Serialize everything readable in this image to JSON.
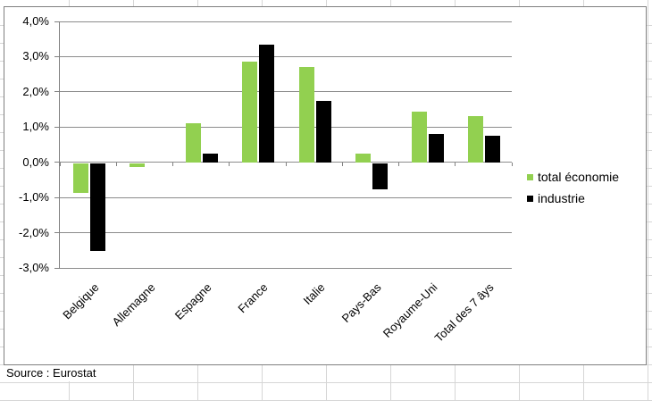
{
  "sheet": {
    "source_note": "Source : Eurostat"
  },
  "chart_data": {
    "type": "bar",
    "title": "",
    "xlabel": "",
    "ylabel": "",
    "categories": [
      "Belgique",
      "Allemagne",
      "Espagne",
      "France",
      "Italie",
      "Pays-Bas",
      "Royaume-Uni",
      "Total des 7 âys"
    ],
    "series": [
      {
        "name": "total économie",
        "color": "#92D050",
        "values": [
          -0.85,
          -0.1,
          1.1,
          2.85,
          2.7,
          0.25,
          1.45,
          1.3
        ]
      },
      {
        "name": "industrie",
        "color": "#000000",
        "values": [
          -2.5,
          0,
          0.25,
          3.35,
          1.75,
          -0.75,
          0.8,
          0.75
        ]
      }
    ],
    "ylim": [
      -3,
      4
    ],
    "y_tick_labels": [
      "4,0%",
      "3,0%",
      "2,0%",
      "1,0%",
      "0,0%",
      "-1,0%",
      "-2,0%",
      "-3,0%"
    ],
    "grid": true,
    "legend_position": "right"
  },
  "colors": {
    "chart_border": "#808080",
    "axis_line": "#808080",
    "gridline": "#8C8C8C",
    "sheet_gridline": "#D6D6D6"
  }
}
